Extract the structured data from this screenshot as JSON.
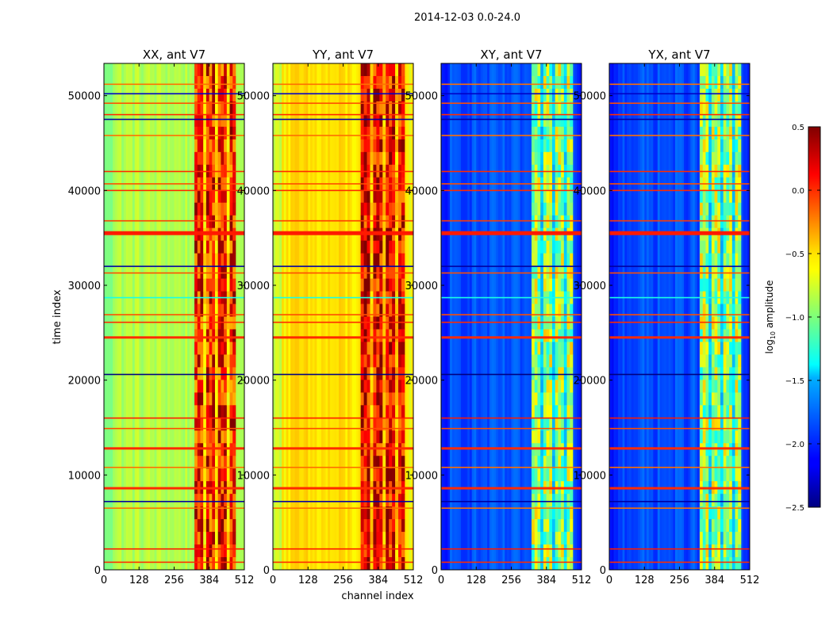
{
  "figure": {
    "suptitle": "2014-12-03 0.0-24.0",
    "xlabel": "channel index",
    "ylabel": "time index",
    "colorbar_label_prefix": "log",
    "colorbar_label_sub": "10",
    "colorbar_label_suffix": " amplitude"
  },
  "chart_data": {
    "type": "heatmap",
    "colormap": "jet",
    "xlim": [
      0,
      512
    ],
    "ylim": [
      0,
      53400
    ],
    "x_ticks": [
      0,
      128,
      256,
      384,
      512
    ],
    "y_ticks": [
      0,
      10000,
      20000,
      30000,
      40000,
      50000
    ],
    "clim": [
      -2.5,
      0.5
    ],
    "colorbar_ticks": [
      "0.5",
      "0.0",
      "−0.5",
      "−1.0",
      "−1.5",
      "−2.0",
      "−2.5"
    ],
    "colorbar_tick_values": [
      0.5,
      0.0,
      -0.5,
      -1.0,
      -1.5,
      -2.0,
      -2.5
    ],
    "panels": [
      {
        "title": "XX, ant V7",
        "base_level": -0.85,
        "band_level": 0.05,
        "band_channels": [
          330,
          480
        ],
        "left_edge_level": -1.0
      },
      {
        "title": "YY, ant V7",
        "base_level": -0.55,
        "band_level": 0.15,
        "band_channels": [
          320,
          480
        ],
        "left_edge_level": -0.8
      },
      {
        "title": "XY, ant V7",
        "base_level": -1.9,
        "band_level": -0.9,
        "band_channels": [
          330,
          480
        ],
        "left_edge_level": -2.1
      },
      {
        "title": "YX, ant V7",
        "base_level": -1.9,
        "band_level": -0.9,
        "band_channels": [
          330,
          480
        ],
        "left_edge_level": -2.1
      }
    ],
    "flagged_rows": [
      {
        "time": 800,
        "level": 0.0
      },
      {
        "time": 2200,
        "level": 0.05
      },
      {
        "time": 6500,
        "level": -0.2
      },
      {
        "time": 7200,
        "level": -2.4
      },
      {
        "time": 8600,
        "level": 0.0
      },
      {
        "time": 10800,
        "level": -0.2
      },
      {
        "time": 12800,
        "level": 0.0
      },
      {
        "time": 14900,
        "level": -0.1
      },
      {
        "time": 16000,
        "level": 0.05
      },
      {
        "time": 20600,
        "level": -2.5
      },
      {
        "time": 24500,
        "level": 0.0
      },
      {
        "time": 26100,
        "level": 0.0
      },
      {
        "time": 26900,
        "level": -0.1
      },
      {
        "time": 28700,
        "level": -1.3
      },
      {
        "time": 31300,
        "level": -0.1
      },
      {
        "time": 32000,
        "level": -2.4
      },
      {
        "time": 35500,
        "level": 0.05
      },
      {
        "time": 36800,
        "level": -0.05
      },
      {
        "time": 40000,
        "level": 0.0
      },
      {
        "time": 40700,
        "level": -0.1
      },
      {
        "time": 42000,
        "level": 0.0
      },
      {
        "time": 45800,
        "level": -0.2
      },
      {
        "time": 47500,
        "level": -2.4
      },
      {
        "time": 48000,
        "level": 0.0
      },
      {
        "time": 49200,
        "level": -0.1
      },
      {
        "time": 50200,
        "level": -2.3
      },
      {
        "time": 51200,
        "level": -0.2
      }
    ]
  }
}
